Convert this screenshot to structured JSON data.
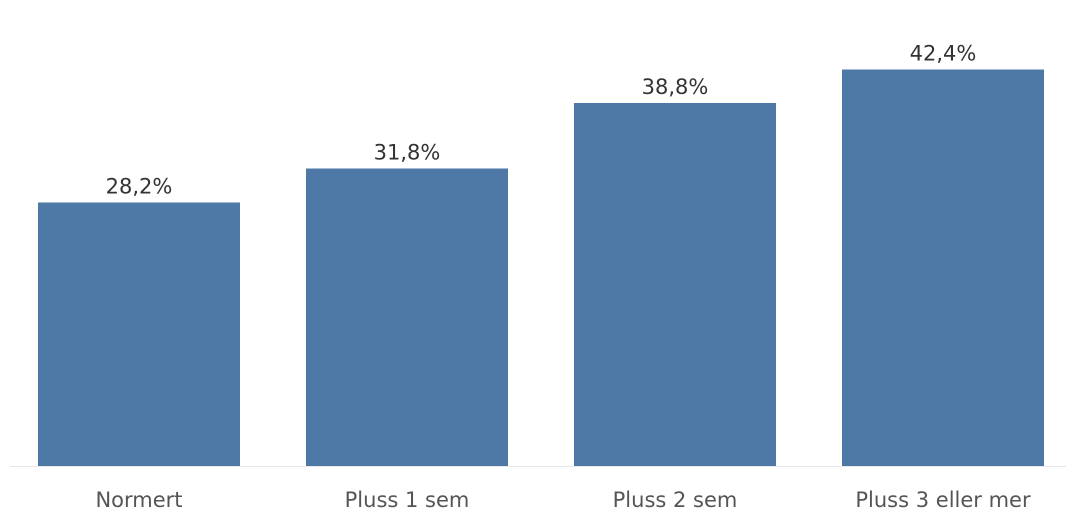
{
  "chart_data": {
    "type": "bar",
    "categories": [
      "Normert",
      "Pluss 1 sem",
      "Pluss 2 sem",
      "Pluss 3 eller mer"
    ],
    "values": [
      28.2,
      31.8,
      38.8,
      42.4
    ],
    "value_labels": [
      "28,2%",
      "31,8%",
      "38,8%",
      "42,4%"
    ],
    "ylim": [
      0,
      50
    ],
    "grid": false,
    "bar_color": "#4e79a7"
  }
}
